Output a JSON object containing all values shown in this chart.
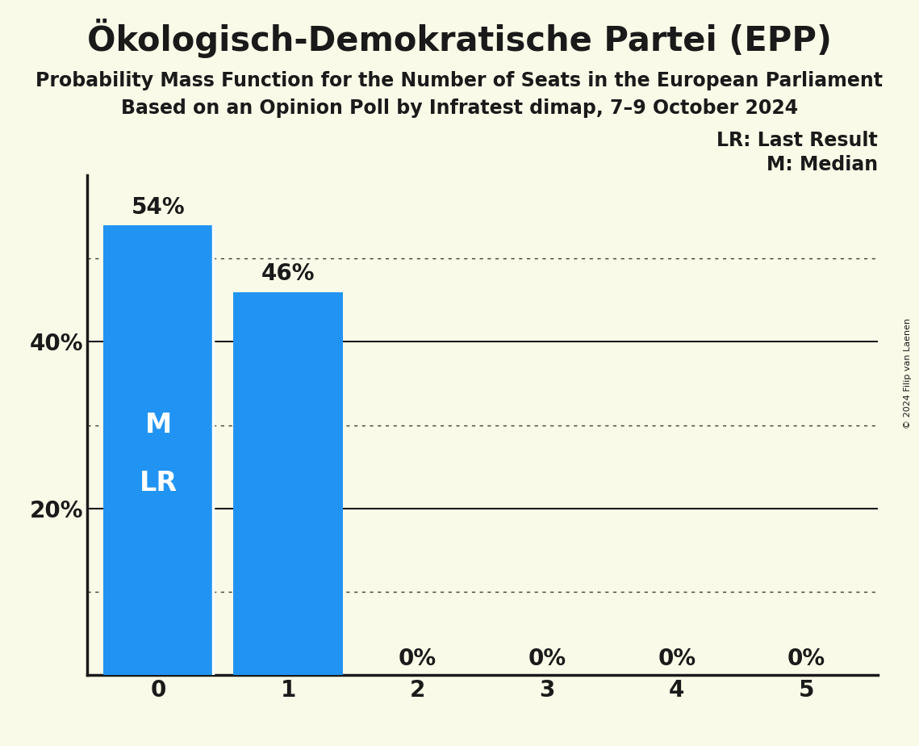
{
  "title": "Ökologisch-Demokratische Partei (EPP)",
  "subtitle1": "Probability Mass Function for the Number of Seats in the European Parliament",
  "subtitle2": "Based on an Opinion Poll by Infratest dimap, 7–9 October 2024",
  "copyright": "© 2024 Filip van Laenen",
  "categories": [
    0,
    1,
    2,
    3,
    4,
    5
  ],
  "values": [
    0.54,
    0.46,
    0.0,
    0.0,
    0.0,
    0.0
  ],
  "bar_color": "#2194F3",
  "background_color": "#FAFAE8",
  "text_color": "#1A1A1A",
  "white_color": "#FFFFFF",
  "ylim": [
    0,
    0.6
  ],
  "solid_gridlines": [
    0.2,
    0.4
  ],
  "dotted_gridlines": [
    0.1,
    0.3,
    0.5
  ],
  "legend_text1": "LR: Last Result",
  "legend_text2": "M: Median",
  "bar_labels": [
    "54%",
    "46%",
    "0%",
    "0%",
    "0%",
    "0%"
  ],
  "title_fontsize": 30,
  "subtitle_fontsize": 17,
  "bar_label_fontsize": 20,
  "axis_fontsize": 20,
  "legend_fontsize": 17,
  "inside_label_fontsize": 24,
  "copyright_fontsize": 8
}
